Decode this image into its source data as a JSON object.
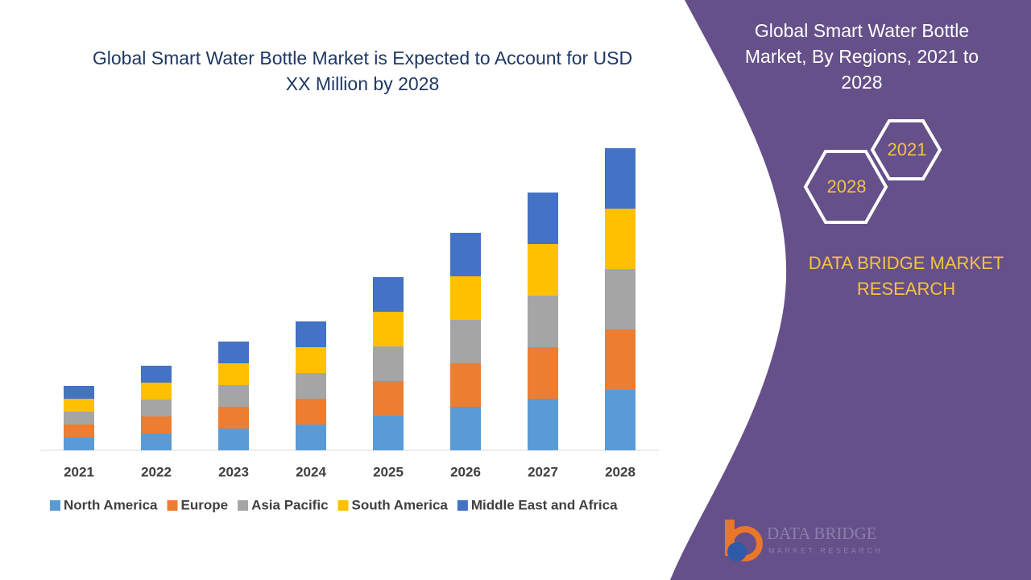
{
  "chart_data": {
    "type": "stacked_bar",
    "title": "Global Smart Water Bottle Market is Expected to Account for USD XX Million by 2028",
    "categories": [
      "2021",
      "2022",
      "2023",
      "2024",
      "2025",
      "2026",
      "2027",
      "2028"
    ],
    "series": [
      {
        "name": "North America",
        "color": "#5b9bd5",
        "values": [
          16,
          21,
          27,
          32,
          43,
          54,
          64,
          75
        ]
      },
      {
        "name": "Europe",
        "color": "#ed7d31",
        "values": [
          16,
          21,
          27,
          32,
          43,
          54,
          64,
          75
        ]
      },
      {
        "name": "Asia Pacific",
        "color": "#a5a5a5",
        "values": [
          16,
          21,
          27,
          32,
          43,
          54,
          64,
          75
        ]
      },
      {
        "name": "South America",
        "color": "#ffc000",
        "values": [
          16,
          21,
          27,
          32,
          43,
          54,
          64,
          75
        ]
      },
      {
        "name": "Middle East and Africa",
        "color": "#4472c4",
        "values": [
          16,
          21,
          27,
          32,
          43,
          54,
          64,
          75
        ]
      }
    ]
  },
  "side_panel": {
    "title": "Global Smart Water Bottle Market, By Regions, 2021 to 2028",
    "hexagons": [
      "2021",
      "2028"
    ],
    "brand": "DATA BRIDGE MARKET RESEARCH"
  },
  "logo": {
    "name": "DATA BRIDGE",
    "tagline": "MARKET RESEARCH"
  }
}
